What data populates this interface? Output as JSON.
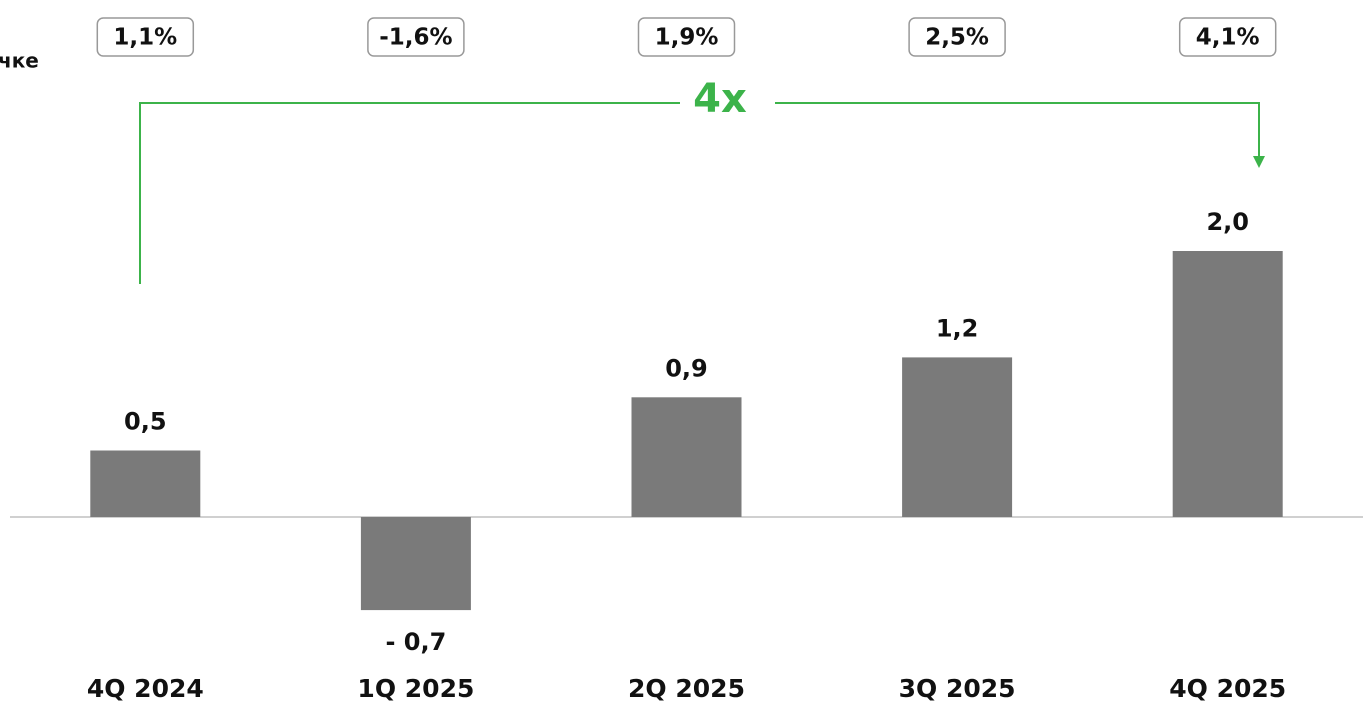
{
  "chart_data": {
    "type": "bar",
    "subtitle": "чке",
    "annotation": "4x",
    "margins": [
      "1,1%",
      "-1,6%",
      "1,9%",
      "2,5%",
      "4,1%"
    ],
    "categories": [
      "4Q 2024",
      "1Q 2025",
      "2Q 2025",
      "3Q 2025",
      "4Q 2025"
    ],
    "values": [
      0.5,
      -0.7,
      0.9,
      1.2,
      2.0
    ],
    "value_labels": [
      "0,5",
      "- 0,7",
      "0,9",
      "1,2",
      "2,0"
    ],
    "color": "#7a7a7a",
    "annotation_color": "#3cb34a",
    "ylim": [
      -1,
      2.5
    ]
  }
}
